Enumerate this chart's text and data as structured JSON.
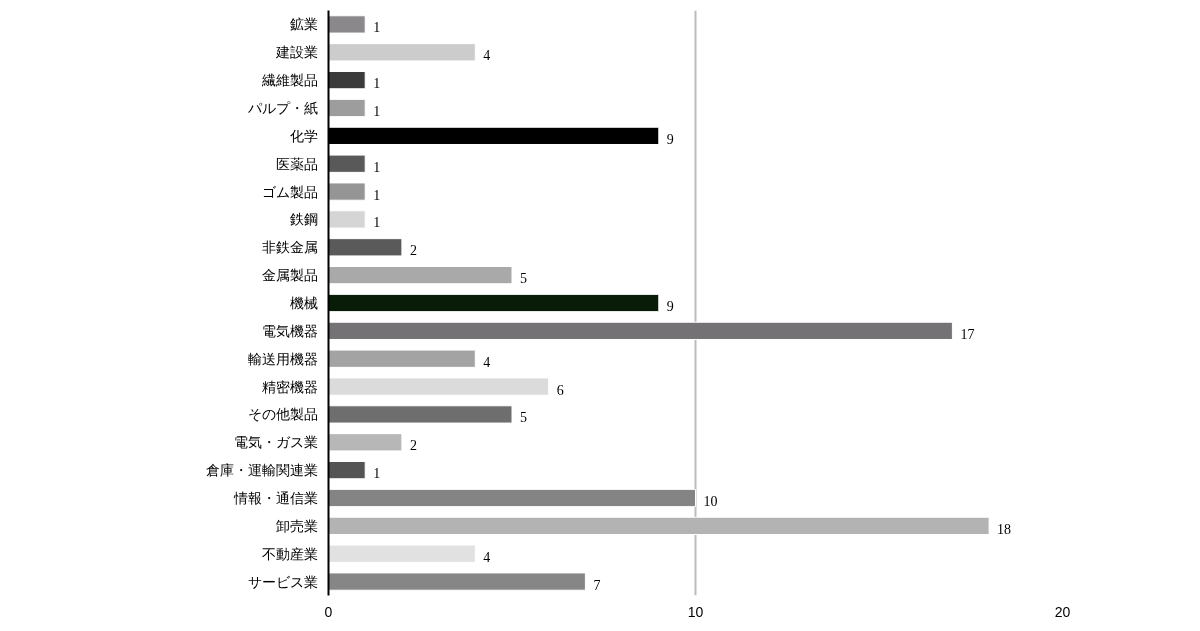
{
  "chart_data": {
    "type": "bar",
    "orientation": "horizontal",
    "categories": [
      "鉱業",
      "建設業",
      "繊維製品",
      "パルプ・紙",
      "化学",
      "医薬品",
      "ゴム製品",
      "鉄鋼",
      "非鉄金属",
      "金属製品",
      "機械",
      "電気機器",
      "輸送用機器",
      "精密機器",
      "その他製品",
      "電気・ガス業",
      "倉庫・運輸関連業",
      "情報・通信業",
      "卸売業",
      "不動産業",
      "サービス業"
    ],
    "values": [
      1,
      4,
      1,
      1,
      9,
      1,
      1,
      1,
      2,
      5,
      9,
      17,
      4,
      6,
      5,
      2,
      1,
      10,
      18,
      4,
      7
    ],
    "colors": [
      "#8a888a",
      "#cdcccd",
      "#3c3b3c",
      "#9e9d9e",
      "#000000",
      "#5a595a",
      "#969596",
      "#d6d5d6",
      "#5b5a5b",
      "#aaa9aa",
      "#081c08",
      "#747274",
      "#a4a3a4",
      "#dcdbdc",
      "#6f6e6f",
      "#b8b7b8",
      "#555455",
      "#858485",
      "#b4b3b4",
      "#e2e1e2",
      "#878687"
    ],
    "xlim": [
      0,
      20
    ],
    "xticks": [
      0,
      10,
      20
    ],
    "grid": "x",
    "data_labels": true
  }
}
